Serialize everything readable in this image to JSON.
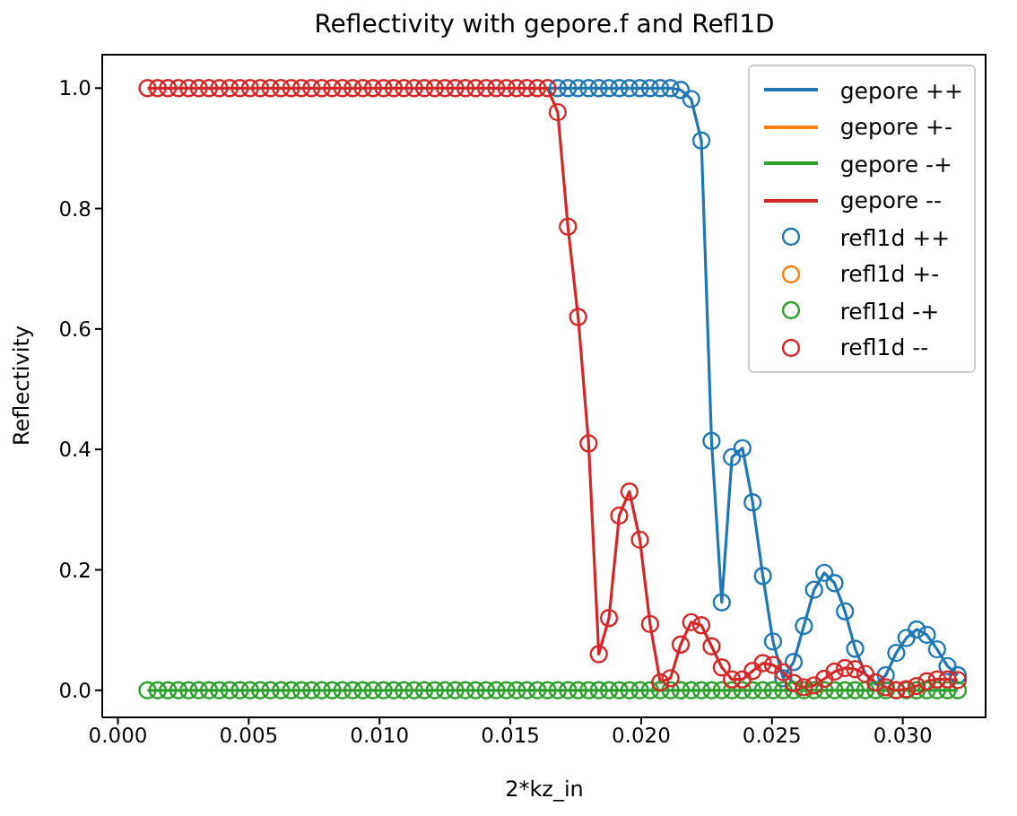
{
  "chart_data": {
    "type": "line",
    "title": "Reflectivity with gepore.f and Refl1D",
    "xlabel": "2*kz_in",
    "ylabel": "Reflectivity",
    "x": [
      0.00113,
      0.00152,
      0.00191,
      0.00231,
      0.0027,
      0.00309,
      0.00348,
      0.00387,
      0.00427,
      0.00466,
      0.00505,
      0.00544,
      0.00583,
      0.00623,
      0.00662,
      0.00701,
      0.0074,
      0.00779,
      0.00819,
      0.00858,
      0.00897,
      0.00936,
      0.00975,
      0.01015,
      0.01054,
      0.01093,
      0.01132,
      0.01171,
      0.01211,
      0.0125,
      0.01289,
      0.01328,
      0.01367,
      0.01407,
      0.01446,
      0.01485,
      0.01524,
      0.01563,
      0.01603,
      0.01642,
      0.01681,
      0.0172,
      0.01759,
      0.01799,
      0.01838,
      0.01877,
      0.01916,
      0.01955,
      0.01995,
      0.02034,
      0.02073,
      0.02112,
      0.02151,
      0.02191,
      0.0223,
      0.02269,
      0.02308,
      0.02347,
      0.02387,
      0.02426,
      0.02465,
      0.02504,
      0.02543,
      0.02583,
      0.02622,
      0.02661,
      0.027,
      0.02739,
      0.02779,
      0.02818,
      0.02857,
      0.02896,
      0.02935,
      0.02975,
      0.03014,
      0.03053,
      0.03092,
      0.03131,
      0.03171,
      0.0321
    ],
    "xlim": [
      -0.0006,
      0.0332
    ],
    "xticks": [
      {
        "value": 0,
        "label": "0.000"
      },
      {
        "value": 0.005,
        "label": "0.005"
      },
      {
        "value": 0.01,
        "label": "0.010"
      },
      {
        "value": 0.015,
        "label": "0.015"
      },
      {
        "value": 0.02,
        "label": "0.020"
      },
      {
        "value": 0.025,
        "label": "0.025"
      },
      {
        "value": 0.03,
        "label": "0.030"
      }
    ],
    "ylim": [
      -0.045,
      1.057
    ],
    "yticks": [
      {
        "value": 0,
        "label": "0.0"
      },
      {
        "value": 0.2,
        "label": "0.2"
      },
      {
        "value": 0.4,
        "label": "0.4"
      },
      {
        "value": 0.6,
        "label": "0.6"
      },
      {
        "value": 0.8,
        "label": "0.8"
      },
      {
        "value": 1,
        "label": "1.0"
      }
    ],
    "grid": false,
    "legend": "top right",
    "line_style": "solid",
    "series": [
      {
        "name": "gepore ++",
        "color": "#1f77b4",
        "values": [
          null,
          null,
          null,
          null,
          null,
          null,
          null,
          null,
          null,
          null,
          null,
          null,
          null,
          null,
          null,
          null,
          null,
          null,
          null,
          null,
          null,
          null,
          null,
          null,
          null,
          null,
          null,
          null,
          null,
          null,
          null,
          null,
          null,
          null,
          null,
          null,
          null,
          null,
          null,
          1,
          1,
          1,
          1,
          1,
          1,
          1,
          1,
          1,
          1,
          1,
          1,
          1,
          0.997,
          0.982,
          0.913,
          0.414,
          0.146,
          0.387,
          0.402,
          0.312,
          0.19,
          0.081,
          0.02,
          0.047,
          0.107,
          0.167,
          0.195,
          0.178,
          0.131,
          0.069,
          0.027,
          0.01,
          0.025,
          0.062,
          0.087,
          0.101,
          0.092,
          0.068,
          0.04,
          0.025
        ]
      },
      {
        "name": "gepore +-",
        "color": "#ff7f0e",
        "values": [
          null,
          null,
          null,
          null,
          null,
          null,
          null,
          null,
          null,
          null,
          null,
          null,
          null,
          null,
          null,
          null,
          null,
          null,
          null,
          null,
          null,
          null,
          null,
          null,
          null,
          null,
          null,
          null,
          null,
          null,
          null,
          null,
          null,
          null,
          null,
          null,
          null,
          null,
          null,
          null,
          null,
          null,
          null,
          null,
          null,
          null,
          null,
          null,
          null,
          null,
          null,
          null,
          null,
          null,
          null,
          null,
          null,
          null,
          null,
          null,
          null,
          null,
          null,
          null,
          null,
          null,
          null,
          null,
          null,
          null,
          null,
          null,
          null,
          null,
          null,
          null,
          null,
          null,
          null,
          null
        ]
      },
      {
        "name": "gepore -+",
        "color": "#2ca02c",
        "values": [
          0,
          0,
          0,
          0,
          0,
          0,
          0,
          0,
          0,
          0,
          0,
          0,
          0,
          0,
          0,
          0,
          0,
          0,
          0,
          0,
          0,
          0,
          0,
          0,
          0,
          0,
          0,
          0,
          0,
          0,
          0,
          0,
          0,
          0,
          0,
          0,
          0,
          0,
          0,
          0,
          0,
          0,
          0,
          0,
          0,
          0,
          0,
          0,
          0,
          0,
          0,
          0,
          0,
          0,
          0,
          0,
          0,
          0,
          0,
          0,
          0,
          0,
          0,
          0,
          0,
          0,
          0,
          0,
          0,
          0,
          0,
          0,
          0,
          0,
          0,
          0,
          0,
          0,
          0,
          0
        ]
      },
      {
        "name": "gepore --",
        "color": "#d62728",
        "values": [
          1,
          1,
          1,
          1,
          1,
          1,
          1,
          1,
          1,
          1,
          1,
          1,
          1,
          1,
          1,
          1,
          1,
          1,
          1,
          1,
          1,
          1,
          1,
          1,
          1,
          1,
          1,
          1,
          1,
          1,
          1,
          1,
          1,
          1,
          1,
          1,
          1,
          1,
          1,
          1,
          0.96,
          0.77,
          0.62,
          0.41,
          0.06,
          0.12,
          0.29,
          0.33,
          0.25,
          0.11,
          0.013,
          0.02,
          0.076,
          0.113,
          0.108,
          0.073,
          0.038,
          0.018,
          0.018,
          0.032,
          0.045,
          0.042,
          0.03,
          0.012,
          0.005,
          0.008,
          0.019,
          0.031,
          0.037,
          0.035,
          0.027,
          0.013,
          0.005,
          0,
          0.002,
          0.007,
          0.015,
          0.018,
          0.018,
          0.017
        ]
      },
      {
        "name": "refl1d ++",
        "type": "scatter",
        "marker": "circle",
        "color": "#1f77b4",
        "values": [
          null,
          null,
          null,
          null,
          null,
          null,
          null,
          null,
          null,
          null,
          null,
          null,
          null,
          null,
          null,
          null,
          null,
          null,
          null,
          null,
          null,
          null,
          null,
          null,
          null,
          null,
          null,
          null,
          null,
          null,
          null,
          null,
          null,
          null,
          null,
          null,
          null,
          null,
          null,
          null,
          1,
          1,
          1,
          1,
          1,
          1,
          1,
          1,
          1,
          1,
          1,
          1,
          0.997,
          0.982,
          0.913,
          0.414,
          0.146,
          0.387,
          0.402,
          0.312,
          0.19,
          0.081,
          0.02,
          0.047,
          0.107,
          0.167,
          0.195,
          0.178,
          0.131,
          0.069,
          null,
          null,
          0.025,
          0.062,
          0.087,
          0.101,
          0.092,
          0.068,
          0.04,
          0.025
        ]
      },
      {
        "name": "refl1d +-",
        "type": "scatter",
        "marker": "circle",
        "color": "#ff7f0e",
        "values": [
          null,
          null,
          null,
          null,
          null,
          null,
          null,
          null,
          null,
          null,
          null,
          null,
          null,
          null,
          null,
          null,
          null,
          null,
          null,
          null,
          null,
          null,
          null,
          null,
          null,
          null,
          null,
          null,
          null,
          null,
          null,
          null,
          null,
          null,
          null,
          null,
          null,
          null,
          null,
          null,
          null,
          null,
          null,
          null,
          null,
          null,
          null,
          null,
          null,
          null,
          null,
          null,
          null,
          null,
          null,
          null,
          null,
          null,
          null,
          null,
          null,
          null,
          null,
          null,
          null,
          null,
          null,
          null,
          null,
          null,
          null,
          null,
          null,
          null,
          null,
          null,
          null,
          null,
          null,
          null
        ]
      },
      {
        "name": "refl1d -+",
        "type": "scatter",
        "marker": "circle",
        "color": "#2ca02c",
        "values": [
          0,
          0,
          0,
          0,
          0,
          0,
          0,
          0,
          0,
          0,
          0,
          0,
          0,
          0,
          0,
          0,
          0,
          0,
          0,
          0,
          0,
          0,
          0,
          0,
          0,
          0,
          0,
          0,
          0,
          0,
          0,
          0,
          0,
          0,
          0,
          0,
          0,
          0,
          0,
          0,
          0,
          0,
          0,
          0,
          0,
          0,
          0,
          0,
          0,
          0,
          0,
          0,
          0,
          0,
          0,
          0,
          0,
          0,
          0,
          0,
          0,
          0,
          0,
          0,
          0,
          0,
          0,
          0,
          0,
          0,
          0,
          0,
          0,
          0,
          0,
          0,
          0,
          0,
          0,
          0
        ]
      },
      {
        "name": "refl1d --",
        "type": "scatter",
        "marker": "circle",
        "color": "#d62728",
        "values": [
          1,
          1,
          1,
          1,
          1,
          1,
          1,
          1,
          1,
          1,
          1,
          1,
          1,
          1,
          1,
          1,
          1,
          1,
          1,
          1,
          1,
          1,
          1,
          1,
          1,
          1,
          1,
          1,
          1,
          1,
          1,
          1,
          1,
          1,
          1,
          1,
          1,
          1,
          1,
          1,
          0.96,
          0.77,
          0.62,
          0.41,
          0.06,
          0.12,
          0.29,
          0.33,
          0.25,
          0.11,
          0.013,
          0.02,
          0.076,
          0.113,
          0.108,
          0.073,
          0.038,
          0.018,
          0.018,
          0.032,
          0.045,
          0.042,
          0.03,
          0.012,
          0.005,
          0.008,
          0.019,
          0.031,
          0.037,
          0.035,
          0.027,
          0.013,
          0.005,
          0,
          0.002,
          0.007,
          0.015,
          0.018,
          0.018,
          0.017
        ]
      }
    ]
  }
}
